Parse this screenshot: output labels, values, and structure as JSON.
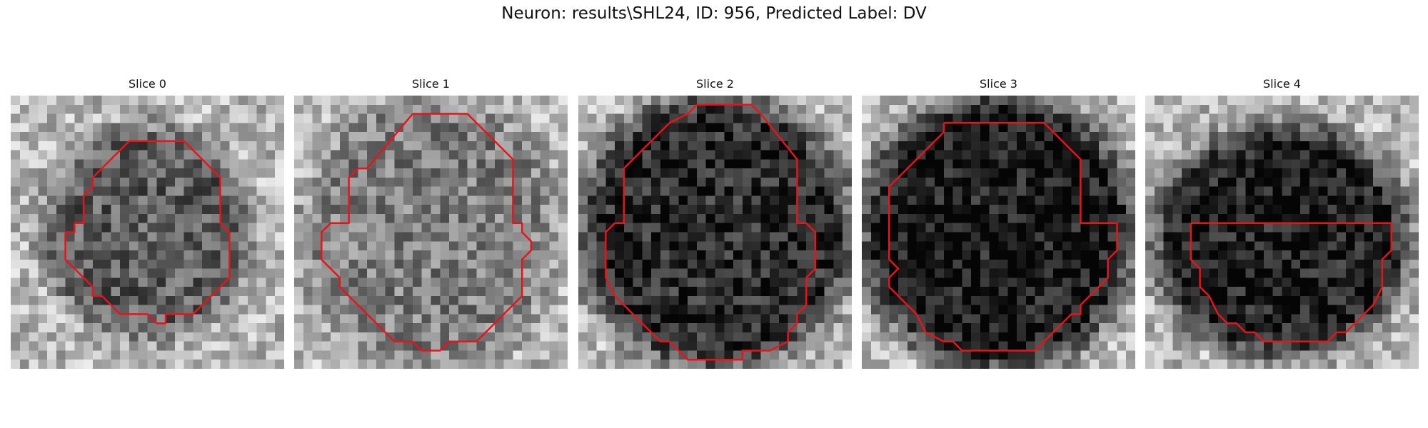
{
  "figure": {
    "title": "Neuron: results\\SHL24, ID: 956, Predicted Label: DV",
    "contour_color": "#e8141a",
    "grid_size": 30
  },
  "slices": [
    {
      "title": "Slice 0",
      "blob": {
        "cx": 15,
        "cy": 15,
        "rx": 10,
        "ry": 10,
        "darkness": 0.35
      },
      "contour": [
        [
          13,
          5
        ],
        [
          19,
          5
        ],
        [
          23,
          9
        ],
        [
          23,
          14
        ],
        [
          24,
          15
        ],
        [
          24,
          20
        ],
        [
          22,
          22
        ],
        [
          20,
          24
        ],
        [
          18,
          24
        ],
        [
          17,
          24
        ],
        [
          17,
          25
        ],
        [
          16,
          25
        ],
        [
          15,
          24
        ],
        [
          12,
          24
        ],
        [
          10,
          22
        ],
        [
          9,
          22
        ],
        [
          9,
          21
        ],
        [
          7,
          19
        ],
        [
          6,
          18
        ],
        [
          6,
          15
        ],
        [
          7,
          15
        ],
        [
          7,
          14
        ],
        [
          8,
          14
        ],
        [
          8,
          11
        ],
        [
          9,
          10
        ],
        [
          9,
          9
        ],
        [
          13,
          5
        ]
      ]
    },
    {
      "title": "Slice 1",
      "blob": {
        "cx": 15,
        "cy": 15,
        "rx": 12,
        "ry": 13,
        "darkness": 0.22
      },
      "contour": [
        [
          13,
          2
        ],
        [
          19,
          2
        ],
        [
          20,
          3
        ],
        [
          24,
          7
        ],
        [
          24,
          14
        ],
        [
          25,
          14
        ],
        [
          25,
          15
        ],
        [
          26,
          16
        ],
        [
          26,
          17
        ],
        [
          25,
          18
        ],
        [
          25,
          22
        ],
        [
          23,
          24
        ],
        [
          22,
          25
        ],
        [
          20,
          27
        ],
        [
          17,
          27
        ],
        [
          16,
          28
        ],
        [
          14,
          28
        ],
        [
          13,
          27
        ],
        [
          11,
          27
        ],
        [
          10,
          26
        ],
        [
          8,
          24
        ],
        [
          6,
          22
        ],
        [
          5,
          21
        ],
        [
          5,
          20
        ],
        [
          4,
          19
        ],
        [
          3,
          18
        ],
        [
          3,
          15
        ],
        [
          4,
          14
        ],
        [
          6,
          14
        ],
        [
          6,
          9
        ],
        [
          7,
          8
        ],
        [
          8,
          8
        ],
        [
          13,
          2
        ]
      ]
    },
    {
      "title": "Slice 2",
      "blob": {
        "cx": 15,
        "cy": 15,
        "rx": 13,
        "ry": 13,
        "darkness": 0.55
      },
      "contour": [
        [
          13,
          1
        ],
        [
          19,
          1
        ],
        [
          20,
          2
        ],
        [
          24,
          7
        ],
        [
          24,
          14
        ],
        [
          25,
          14
        ],
        [
          26,
          15
        ],
        [
          26,
          19
        ],
        [
          25,
          20
        ],
        [
          25,
          23
        ],
        [
          24,
          24
        ],
        [
          24,
          25
        ],
        [
          23,
          26
        ],
        [
          23,
          27
        ],
        [
          21,
          28
        ],
        [
          18,
          28
        ],
        [
          18,
          29
        ],
        [
          12,
          29
        ],
        [
          10,
          27
        ],
        [
          9,
          27
        ],
        [
          7,
          25
        ],
        [
          6,
          24
        ],
        [
          5,
          23
        ],
        [
          4,
          22
        ],
        [
          3,
          20
        ],
        [
          3,
          15
        ],
        [
          4,
          14
        ],
        [
          5,
          14
        ],
        [
          5,
          8
        ],
        [
          10,
          3
        ],
        [
          12,
          2
        ],
        [
          13,
          1
        ]
      ]
    },
    {
      "title": "Slice 3",
      "blob": {
        "cx": 15,
        "cy": 15,
        "rx": 13,
        "ry": 13,
        "darkness": 0.62
      },
      "contour": [
        [
          9,
          3
        ],
        [
          10,
          3
        ],
        [
          10,
          3
        ],
        [
          20,
          3
        ],
        [
          24,
          7
        ],
        [
          24,
          14
        ],
        [
          28,
          14
        ],
        [
          28,
          17
        ],
        [
          27,
          18
        ],
        [
          27,
          20
        ],
        [
          26,
          21
        ],
        [
          25,
          22
        ],
        [
          24,
          23
        ],
        [
          24,
          24
        ],
        [
          23,
          24
        ],
        [
          20,
          27
        ],
        [
          19,
          28
        ],
        [
          18,
          28
        ],
        [
          17,
          28
        ],
        [
          16,
          28
        ],
        [
          15,
          28
        ],
        [
          14,
          28
        ],
        [
          13,
          28
        ],
        [
          12,
          28
        ],
        [
          11,
          28
        ],
        [
          10,
          27
        ],
        [
          9,
          27
        ],
        [
          7,
          26
        ],
        [
          6,
          24
        ],
        [
          5,
          23
        ],
        [
          4,
          22
        ],
        [
          3,
          21
        ],
        [
          3,
          20
        ],
        [
          4,
          19
        ],
        [
          3,
          18
        ],
        [
          3,
          17
        ],
        [
          3,
          10
        ],
        [
          9,
          4
        ],
        [
          9,
          3
        ]
      ]
    },
    {
      "title": "Slice 4",
      "blob": {
        "cx": 15,
        "cy": 16,
        "rx": 12,
        "ry": 11,
        "darkness": 0.6
      },
      "contour": [
        [
          5,
          14
        ],
        [
          27,
          14
        ],
        [
          27,
          17
        ],
        [
          26,
          18
        ],
        [
          26,
          21
        ],
        [
          25,
          23
        ],
        [
          24,
          24
        ],
        [
          23,
          25
        ],
        [
          22,
          26
        ],
        [
          21,
          26
        ],
        [
          20,
          27
        ],
        [
          19,
          27
        ],
        [
          19,
          27
        ],
        [
          13,
          27
        ],
        [
          12,
          26
        ],
        [
          11,
          26
        ],
        [
          10,
          25
        ],
        [
          9,
          25
        ],
        [
          8,
          24
        ],
        [
          7,
          22
        ],
        [
          6,
          21
        ],
        [
          6,
          19
        ],
        [
          5,
          18
        ],
        [
          5,
          14
        ]
      ]
    }
  ]
}
